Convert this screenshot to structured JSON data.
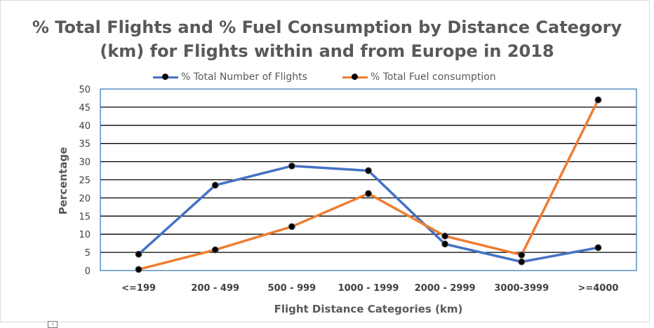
{
  "chart_data": {
    "type": "line",
    "title_line1": "% Total Flights and % Fuel Consumption by Distance Category",
    "title_line2": "(km) for Flights within and from Europe in 2018",
    "xlabel": "Flight Distance Categories (km)",
    "ylabel": "Percentage",
    "categories": [
      "<=199",
      "200 - 499",
      "500 - 999",
      "1000 - 1999",
      "2000 - 2999",
      "3000-3999",
      ">=4000"
    ],
    "ylim": [
      0,
      50
    ],
    "yticks": [
      "0",
      "5",
      "10",
      "15",
      "20",
      "25",
      "30",
      "35",
      "40",
      "45",
      "50"
    ],
    "grid": true,
    "legend_position": "top",
    "series": [
      {
        "name": "% Total Number of Flights",
        "color": "#4472c4",
        "values": [
          4.5,
          23.5,
          28.8,
          27.5,
          7.3,
          2.4,
          6.3
        ]
      },
      {
        "name": "% Total Fuel consumption",
        "color": "#ed7d31",
        "values": [
          0.3,
          5.7,
          12.1,
          21.2,
          9.5,
          4.3,
          47.0
        ]
      }
    ]
  },
  "misc": {
    "handle_glyph": "↑"
  }
}
